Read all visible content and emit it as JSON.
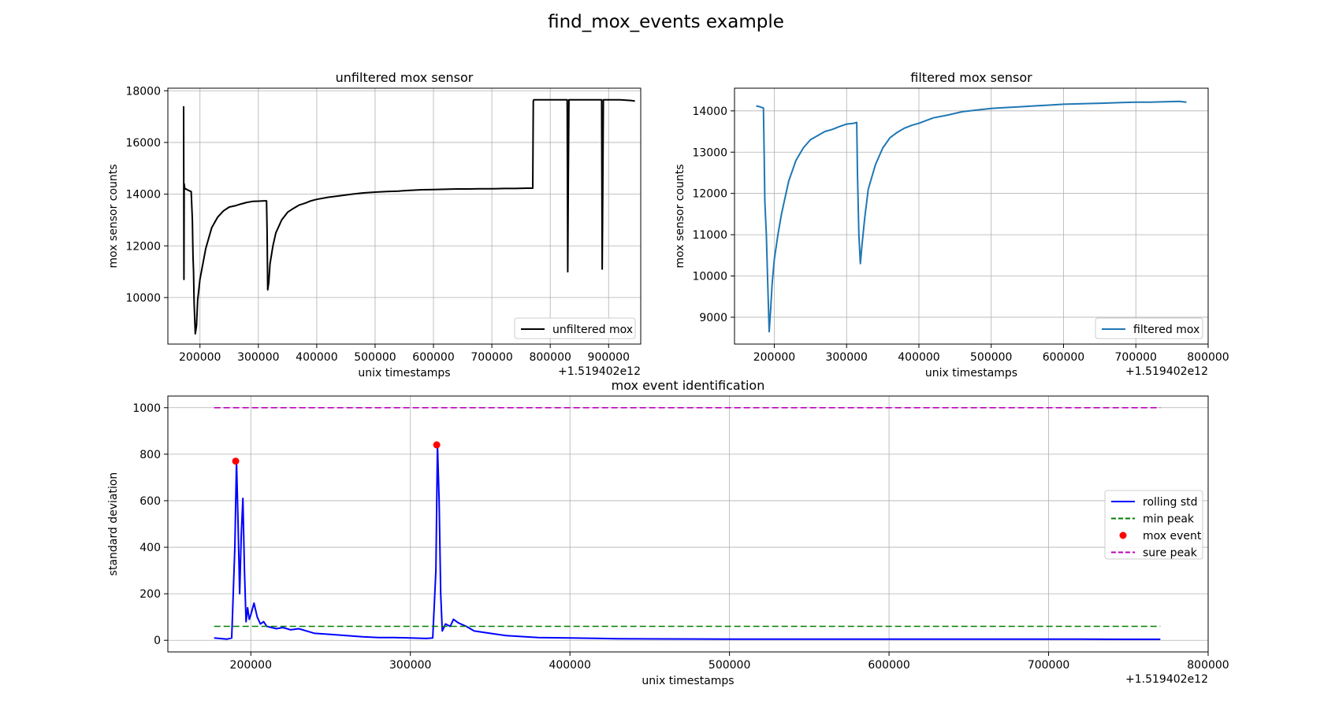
{
  "figure": {
    "suptitle": "find_mox_events example"
  },
  "chart_data": [
    {
      "type": "line",
      "title": "unfiltered mox sensor",
      "xlabel": "unix timestamps",
      "ylabel": "mox sensor counts",
      "offset_text": "+1.519402e12",
      "xlim": [
        145000,
        955000
      ],
      "ylim": [
        8200,
        18100
      ],
      "xticks": [
        200000,
        300000,
        400000,
        500000,
        600000,
        700000,
        800000,
        900000
      ],
      "yticks": [
        10000,
        12000,
        14000,
        16000,
        18000
      ],
      "grid": true,
      "legend": "lower-right",
      "series": [
        {
          "name": "unfiltered mox",
          "color": "#000000",
          "x": [
            172000,
            172500,
            173000,
            174000,
            176000,
            180000,
            185000,
            187000,
            188000,
            189000,
            190000,
            192000,
            194000,
            196000,
            200000,
            205000,
            210000,
            220000,
            230000,
            240000,
            250000,
            260000,
            270000,
            280000,
            290000,
            300000,
            310000,
            314000,
            315000,
            316000,
            318000,
            320000,
            325000,
            330000,
            340000,
            350000,
            360000,
            370000,
            380000,
            390000,
            400000,
            420000,
            440000,
            460000,
            480000,
            500000,
            520000,
            540000,
            560000,
            580000,
            600000,
            620000,
            640000,
            660000,
            680000,
            700000,
            720000,
            740000,
            760000,
            770000,
            771000,
            772000,
            780000,
            800000,
            820000,
            829000,
            830000,
            831000,
            832000,
            840000,
            860000,
            880000,
            888000,
            889000,
            890000,
            891000,
            900000,
            920000,
            940000,
            945000
          ],
          "y": [
            17400,
            10700,
            14400,
            14200,
            14200,
            14150,
            14100,
            13000,
            11600,
            11000,
            9800,
            8600,
            8900,
            9900,
            10700,
            11300,
            11900,
            12700,
            13100,
            13350,
            13500,
            13550,
            13620,
            13680,
            13720,
            13730,
            13740,
            13740,
            12600,
            10300,
            10600,
            11300,
            12000,
            12500,
            13000,
            13300,
            13450,
            13580,
            13650,
            13740,
            13800,
            13880,
            13940,
            14000,
            14050,
            14080,
            14100,
            14120,
            14150,
            14170,
            14180,
            14190,
            14200,
            14200,
            14210,
            14210,
            14220,
            14220,
            14230,
            14230,
            17600,
            17650,
            17650,
            17650,
            17650,
            17650,
            11000,
            14500,
            17650,
            17650,
            17650,
            17650,
            17650,
            11100,
            14300,
            17650,
            17650,
            17650,
            17620,
            17600
          ]
        }
      ]
    },
    {
      "type": "line",
      "title": "filtered mox sensor",
      "xlabel": "unix timestamps",
      "ylabel": "mox sensor counts",
      "offset_text": "+1.519402e12",
      "xlim": [
        145000,
        800000
      ],
      "ylim": [
        8350,
        14550
      ],
      "xticks": [
        200000,
        300000,
        400000,
        500000,
        600000,
        700000,
        800000
      ],
      "yticks": [
        9000,
        10000,
        11000,
        12000,
        13000,
        14000
      ],
      "grid": true,
      "legend": "lower-right",
      "series": [
        {
          "name": "filtered mox",
          "color": "#1f77b4",
          "x": [
            175000,
            180000,
            185000,
            186000,
            187000,
            189000,
            191000,
            193000,
            195000,
            197000,
            200000,
            205000,
            210000,
            220000,
            230000,
            240000,
            250000,
            260000,
            270000,
            280000,
            290000,
            300000,
            310000,
            314000,
            315000,
            317000,
            319000,
            321000,
            325000,
            330000,
            340000,
            350000,
            360000,
            370000,
            380000,
            390000,
            400000,
            420000,
            440000,
            460000,
            480000,
            500000,
            520000,
            540000,
            560000,
            580000,
            600000,
            620000,
            640000,
            660000,
            680000,
            700000,
            720000,
            740000,
            760000,
            770000
          ],
          "y": [
            14120,
            14100,
            14070,
            13000,
            11800,
            11000,
            9800,
            8650,
            9200,
            9800,
            10400,
            11000,
            11500,
            12300,
            12800,
            13100,
            13300,
            13400,
            13500,
            13550,
            13620,
            13680,
            13700,
            13720,
            12500,
            11000,
            10300,
            10700,
            11400,
            12100,
            12700,
            13100,
            13350,
            13480,
            13580,
            13650,
            13700,
            13830,
            13900,
            13980,
            14020,
            14060,
            14080,
            14100,
            14120,
            14140,
            14160,
            14170,
            14180,
            14190,
            14200,
            14210,
            14210,
            14220,
            14230,
            14210
          ]
        }
      ]
    },
    {
      "type": "line",
      "title": "mox event identification",
      "xlabel": "unix timestamps",
      "ylabel": "standard deviation",
      "offset_text": "+1.519402e12",
      "xlim": [
        148000,
        800000
      ],
      "ylim": [
        -50,
        1050
      ],
      "xticks": [
        200000,
        300000,
        400000,
        500000,
        600000,
        700000,
        800000
      ],
      "yticks": [
        0,
        200,
        400,
        600,
        800,
        1000
      ],
      "grid": true,
      "legend": "center-right",
      "series": [
        {
          "name": "rolling std",
          "color": "#0000ff",
          "style": "solid",
          "x": [
            177000,
            185000,
            188000,
            190000,
            191000,
            192000,
            193000,
            194000,
            195000,
            196000,
            197000,
            198000,
            199000,
            200000,
            202000,
            204000,
            206000,
            208000,
            210000,
            213000,
            216000,
            220000,
            225000,
            230000,
            240000,
            250000,
            260000,
            270000,
            280000,
            290000,
            300000,
            310000,
            314000,
            316000,
            317000,
            318000,
            319000,
            320000,
            322000,
            325000,
            327000,
            330000,
            335000,
            340000,
            350000,
            360000,
            380000,
            400000,
            430000,
            460000,
            500000,
            550000,
            600000,
            650000,
            700000,
            720000,
            750000,
            770000
          ],
          "y": [
            10,
            5,
            10,
            400,
            770,
            500,
            200,
            450,
            610,
            300,
            80,
            140,
            90,
            110,
            160,
            100,
            70,
            80,
            60,
            55,
            50,
            55,
            45,
            50,
            30,
            25,
            20,
            15,
            12,
            12,
            10,
            8,
            10,
            300,
            840,
            600,
            200,
            40,
            70,
            60,
            90,
            75,
            60,
            40,
            30,
            20,
            12,
            10,
            7,
            6,
            5,
            5,
            5,
            5,
            5,
            5,
            4,
            4
          ]
        },
        {
          "name": "min peak",
          "color": "#008000",
          "style": "dashed",
          "x": [
            177000,
            770000
          ],
          "y": [
            60,
            60
          ]
        },
        {
          "name": "mox event",
          "color": "#ff0000",
          "style": "marker",
          "x": [
            190500,
            316500
          ],
          "y": [
            770,
            840
          ]
        },
        {
          "name": "sure peak",
          "color": "#bf00bf",
          "style": "dashed",
          "x": [
            177000,
            770000
          ],
          "y": [
            1000,
            1000
          ]
        }
      ]
    }
  ]
}
